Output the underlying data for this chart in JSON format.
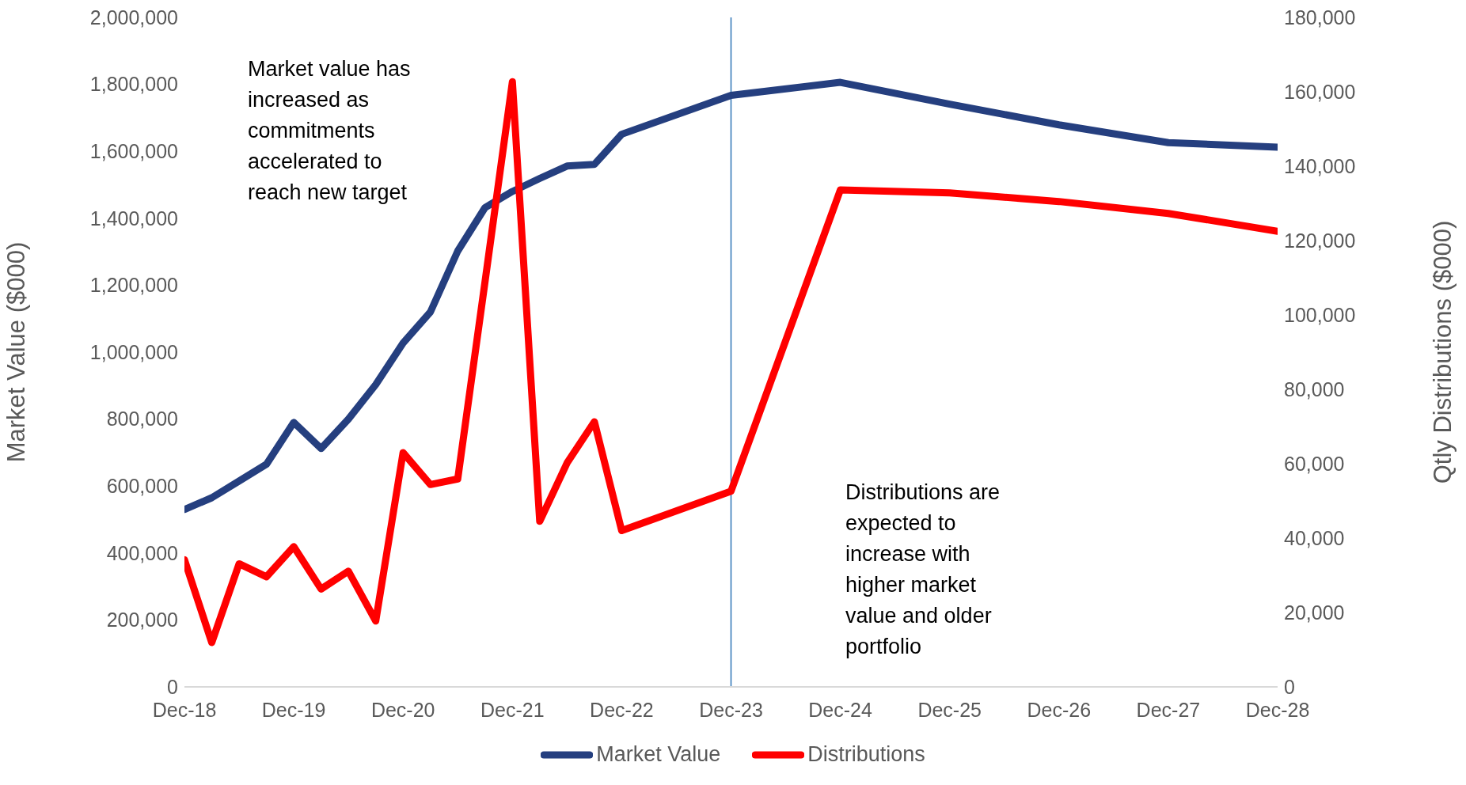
{
  "chart_data": {
    "type": "line",
    "ylabel": "Market Value ($000)",
    "y2label": "Qtly Distributions ($000)",
    "x": [
      "2018-12",
      "2019-03",
      "2019-06",
      "2019-09",
      "2019-12",
      "2020-03",
      "2020-06",
      "2020-09",
      "2020-12",
      "2021-03",
      "2021-06",
      "2021-09",
      "2021-12",
      "2022-03",
      "2022-06",
      "2022-09",
      "2022-12",
      "2023-12",
      "2024-12",
      "2025-12",
      "2026-12",
      "2027-12",
      "2028-12"
    ],
    "series": [
      {
        "name": "Market Value",
        "color": "#253f7f",
        "values": [
          530000,
          565000,
          615000,
          665000,
          790000,
          712000,
          800000,
          903000,
          1027000,
          1120000,
          1302000,
          1432000,
          1480000,
          1519000,
          1556000,
          1561000,
          1651000,
          1767000,
          1806000,
          1741000,
          1679000,
          1626000,
          1612000
        ]
      },
      {
        "name": "Distributions",
        "color": "#ff0000",
        "axis": "y2",
        "values": [
          34200,
          11900,
          33100,
          29600,
          37700,
          26300,
          31100,
          17700,
          63000,
          54400,
          55900,
          109000,
          162700,
          44500,
          60200,
          71300,
          42000,
          52600,
          133600,
          132800,
          130500,
          127300,
          122500
        ]
      }
    ],
    "xlim": [
      "2018-12",
      "2028-12"
    ],
    "xticks": [
      {
        "value": "2018-12",
        "label": "Dec-18"
      },
      {
        "value": "2019-12",
        "label": "Dec-19"
      },
      {
        "value": "2020-12",
        "label": "Dec-20"
      },
      {
        "value": "2021-12",
        "label": "Dec-21"
      },
      {
        "value": "2022-12",
        "label": "Dec-22"
      },
      {
        "value": "2023-12",
        "label": "Dec-23"
      },
      {
        "value": "2024-12",
        "label": "Dec-24"
      },
      {
        "value": "2025-12",
        "label": "Dec-25"
      },
      {
        "value": "2026-12",
        "label": "Dec-26"
      },
      {
        "value": "2027-12",
        "label": "Dec-27"
      },
      {
        "value": "2028-12",
        "label": "Dec-28"
      }
    ],
    "ylim": [
      0,
      2000000
    ],
    "yticks": [
      0,
      {
        "value": 200000,
        "label": "200,000"
      },
      {
        "value": 400000,
        "label": "400,000"
      },
      {
        "value": 600000,
        "label": "600,000"
      },
      {
        "value": 800000,
        "label": "800,000"
      },
      {
        "value": 1000000,
        "label": "1,000,000"
      },
      {
        "value": 1200000,
        "label": "1,200,000"
      },
      {
        "value": 1400000,
        "label": "1,400,000"
      },
      {
        "value": 1600000,
        "label": "1,600,000"
      },
      {
        "value": 1800000,
        "label": "1,800,000"
      },
      {
        "value": 2000000,
        "label": "2,000,000"
      }
    ],
    "y2lim": [
      0,
      180000
    ],
    "y2ticks": [
      0,
      {
        "value": 20000,
        "label": "20,000"
      },
      {
        "value": 40000,
        "label": "40,000"
      },
      {
        "value": 60000,
        "label": "60,000"
      },
      {
        "value": 80000,
        "label": "80,000"
      },
      {
        "value": 100000,
        "label": "100,000"
      },
      {
        "value": 120000,
        "label": "120,000"
      },
      {
        "value": 140000,
        "label": "140,000"
      },
      {
        "value": 160000,
        "label": "160,000"
      },
      {
        "value": 180000,
        "label": "180,000"
      }
    ],
    "ref_lines": [
      {
        "axis": "x",
        "value": "2023-12",
        "color": "#2e75b6"
      }
    ],
    "annotations": [
      "Market value has increased as commitments accelerated to reach new target",
      "Distributions are expected to increase with higher market value and older portfolio"
    ],
    "legend": "bottom",
    "grid": false,
    "line_style": "solid",
    "marker": "none"
  }
}
